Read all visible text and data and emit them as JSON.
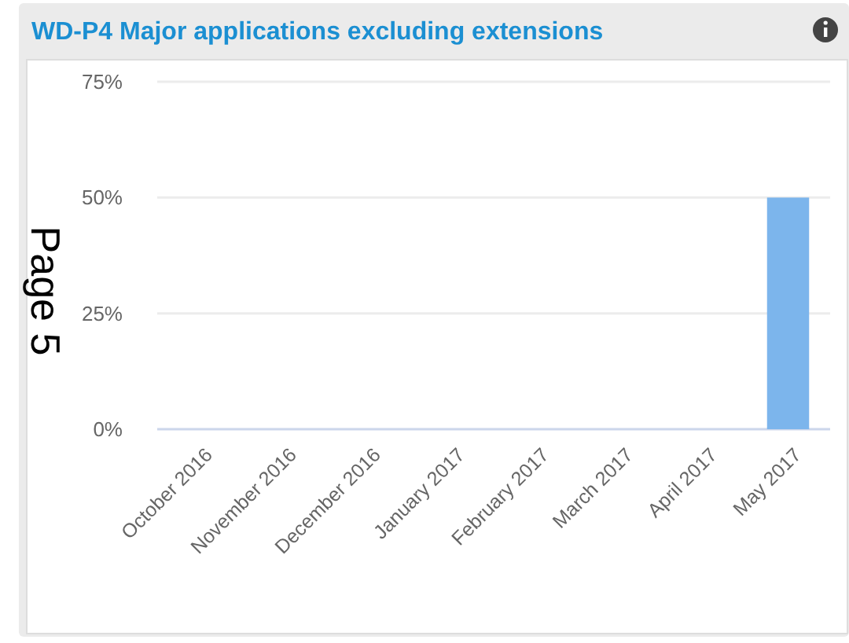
{
  "chart_data": {
    "type": "bar",
    "title": "WD-P4 Major applications excluding extensions",
    "categories": [
      "October 2016",
      "November 2016",
      "December 2016",
      "January 2017",
      "February 2017",
      "March 2017",
      "April 2017",
      "May 2017"
    ],
    "values": [
      0,
      0,
      0,
      0,
      0,
      0,
      0,
      50
    ],
    "color": "#7cb5ec",
    "ylim": [
      0,
      75
    ],
    "yticks": [
      {
        "value": 0,
        "label": "0%"
      },
      {
        "value": 25,
        "label": "25%"
      },
      {
        "value": 50,
        "label": "50%"
      },
      {
        "value": 75,
        "label": "75%"
      }
    ],
    "grid": "y",
    "annotations": [
      "Page 5"
    ]
  }
}
